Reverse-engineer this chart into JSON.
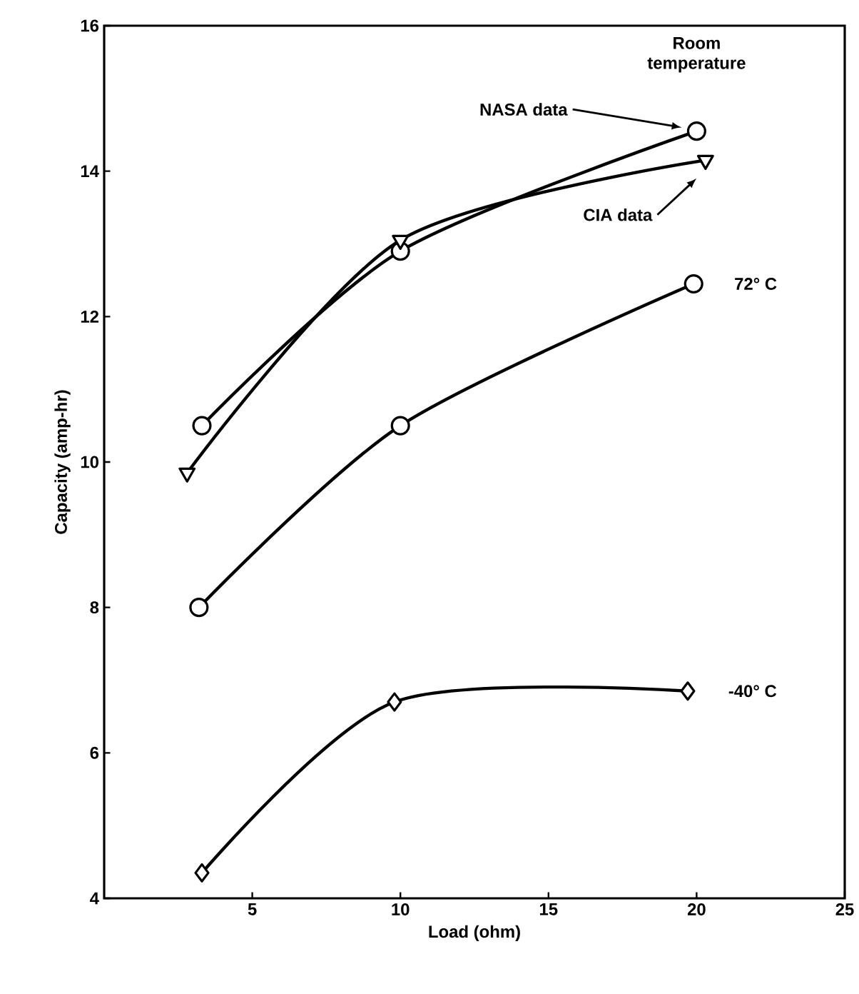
{
  "chart_data": {
    "type": "line",
    "xlabel": "Load (ohm)",
    "ylabel": "Capacity (amp-hr)",
    "xlim": [
      0,
      25
    ],
    "xticks": [
      5,
      10,
      15,
      20,
      25
    ],
    "ylim": [
      4,
      16
    ],
    "yticks": [
      4,
      6,
      8,
      10,
      12,
      14,
      16
    ],
    "line_style": "solid",
    "annotations": [
      "Room temperature"
    ],
    "series": [
      {
        "name": "NASA data",
        "color": "#000000",
        "marker": "circle",
        "x": [
          3.3,
          10,
          20
        ],
        "values": [
          10.5,
          12.9,
          14.55
        ]
      },
      {
        "name": "CIA data",
        "color": "#000000",
        "marker": "triangle",
        "x": [
          2.8,
          10,
          20.3
        ],
        "values": [
          9.85,
          13.05,
          14.15
        ]
      },
      {
        "name": "72° C",
        "color": "#000000",
        "marker": "circle",
        "x": [
          3.2,
          10,
          19.9
        ],
        "values": [
          8.0,
          10.5,
          12.45
        ]
      },
      {
        "name": "-40° C",
        "color": "#000000",
        "marker": "diamond",
        "x": [
          3.3,
          9.8,
          19.7
        ],
        "values": [
          4.35,
          6.7,
          6.85
        ]
      }
    ]
  }
}
